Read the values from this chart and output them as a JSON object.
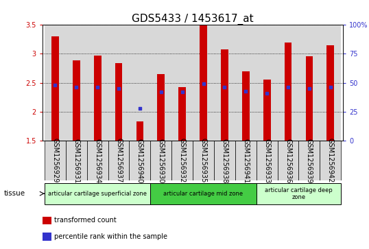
{
  "title": "GDS5433 / 1453617_at",
  "samples": [
    "GSM1256929",
    "GSM1256931",
    "GSM1256934",
    "GSM1256937",
    "GSM1256940",
    "GSM1256930",
    "GSM1256932",
    "GSM1256935",
    "GSM1256938",
    "GSM1256941",
    "GSM1256933",
    "GSM1256936",
    "GSM1256939",
    "GSM1256942"
  ],
  "transformed_count": [
    3.3,
    2.89,
    2.97,
    2.84,
    1.83,
    2.65,
    2.42,
    3.49,
    3.08,
    2.7,
    2.55,
    3.19,
    2.96,
    3.15
  ],
  "percentile_rank": [
    48,
    46,
    46,
    45,
    28,
    42,
    42,
    49,
    46,
    43,
    41,
    46,
    45,
    46
  ],
  "bar_color": "#cc0000",
  "blue_color": "#3333cc",
  "ylim_left": [
    1.5,
    3.5
  ],
  "ylim_right": [
    0,
    100
  ],
  "yticks_left": [
    1.5,
    2.0,
    2.5,
    3.0,
    3.5
  ],
  "yticks_right": [
    0,
    25,
    50,
    75,
    100
  ],
  "ytick_labels_right": [
    "0",
    "25",
    "50",
    "75",
    "100%"
  ],
  "groups": [
    {
      "label": "articular cartilage superficial zone",
      "start": 0,
      "end": 5,
      "color": "#ccffcc"
    },
    {
      "label": "articular cartilage mid zone",
      "start": 5,
      "end": 10,
      "color": "#44cc44"
    },
    {
      "label": "articular cartilage deep\nzone",
      "start": 10,
      "end": 14,
      "color": "#ccffcc"
    }
  ],
  "tissue_label": "tissue",
  "legend_items": [
    {
      "color": "#cc0000",
      "label": "transformed count"
    },
    {
      "color": "#3333cc",
      "label": "percentile rank within the sample"
    }
  ],
  "bar_width": 0.35,
  "col_bg": "#d8d8d8",
  "plot_bg": "#ffffff",
  "title_fontsize": 11,
  "tick_fontsize": 7,
  "label_fontsize": 7.5
}
